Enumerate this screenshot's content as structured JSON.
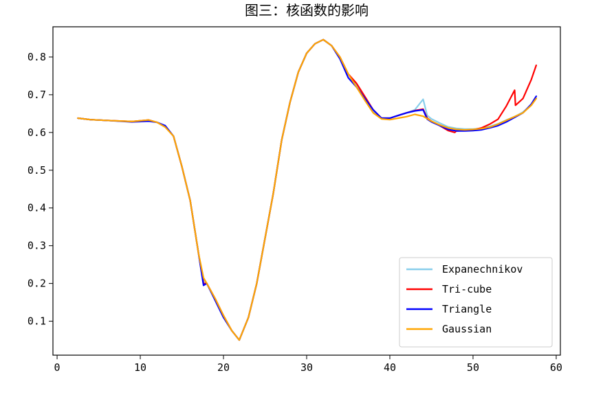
{
  "chart_data": {
    "type": "line",
    "title": "图三：核函数的影响",
    "xlabel": "",
    "ylabel": "",
    "xlim": [
      -0.5,
      60.5
    ],
    "ylim": [
      0.01,
      0.88
    ],
    "xticks": [
      0,
      10,
      20,
      30,
      40,
      50,
      60
    ],
    "yticks": [
      0.1,
      0.2,
      0.3,
      0.4,
      0.5,
      0.6,
      0.7,
      0.8
    ],
    "xtick_labels": [
      "0",
      "10",
      "20",
      "30",
      "40",
      "50",
      "60"
    ],
    "ytick_labels": [
      "0.1",
      "0.2",
      "0.3",
      "0.4",
      "0.5",
      "0.6",
      "0.7",
      "0.8"
    ],
    "grid": false,
    "legend_position": "lower-right",
    "series": [
      {
        "name": "Expanechnikov",
        "color": "#87ceeb",
        "x": [
          2.5,
          4,
          6,
          9,
          11,
          12,
          13,
          14,
          15,
          16,
          17,
          17.6,
          18,
          19,
          20,
          21,
          21.9,
          23,
          24,
          25,
          26,
          27,
          28,
          29,
          30,
          31,
          32,
          33,
          34,
          35,
          36,
          37,
          38,
          39,
          40,
          41,
          42,
          43,
          44,
          44.5,
          45,
          46,
          47,
          48,
          49,
          50,
          51,
          52,
          53,
          54,
          55,
          56,
          57,
          57.6
        ],
        "y": [
          0.638,
          0.634,
          0.632,
          0.629,
          0.633,
          0.627,
          0.616,
          0.59,
          0.51,
          0.42,
          0.28,
          0.21,
          0.2,
          0.16,
          0.115,
          0.075,
          0.05,
          0.11,
          0.2,
          0.32,
          0.44,
          0.58,
          0.68,
          0.76,
          0.81,
          0.835,
          0.846,
          0.83,
          0.8,
          0.755,
          0.725,
          0.69,
          0.655,
          0.638,
          0.638,
          0.645,
          0.652,
          0.66,
          0.688,
          0.645,
          0.636,
          0.625,
          0.615,
          0.611,
          0.609,
          0.609,
          0.611,
          0.616,
          0.623,
          0.633,
          0.642,
          0.654,
          0.672,
          0.691
        ]
      },
      {
        "name": "Tri-cube",
        "color": "#ff0000",
        "x": [
          2.5,
          4,
          6,
          9,
          11,
          12,
          13,
          14,
          15,
          16,
          17,
          17.6,
          18,
          19,
          20,
          21,
          21.9,
          23,
          24,
          25,
          26,
          27,
          28,
          29,
          30,
          31,
          32,
          33,
          34,
          35,
          36,
          37,
          38,
          39,
          40,
          41,
          42,
          43,
          44,
          44.5,
          45,
          46,
          47,
          47.8,
          48,
          49,
          50,
          51,
          52,
          53,
          54,
          55,
          55.1,
          56,
          57,
          57.6
        ],
        "y": [
          0.638,
          0.634,
          0.632,
          0.629,
          0.633,
          0.627,
          0.616,
          0.59,
          0.51,
          0.42,
          0.28,
          0.2,
          0.2,
          0.16,
          0.115,
          0.075,
          0.05,
          0.11,
          0.2,
          0.32,
          0.44,
          0.58,
          0.68,
          0.76,
          0.81,
          0.835,
          0.846,
          0.83,
          0.8,
          0.755,
          0.73,
          0.695,
          0.66,
          0.638,
          0.638,
          0.645,
          0.652,
          0.658,
          0.662,
          0.638,
          0.63,
          0.618,
          0.605,
          0.6,
          0.604,
          0.605,
          0.607,
          0.612,
          0.622,
          0.635,
          0.67,
          0.712,
          0.672,
          0.69,
          0.74,
          0.778
        ]
      },
      {
        "name": "Triangle",
        "color": "#0000ff",
        "x": [
          2.5,
          4,
          6,
          9,
          11,
          12,
          13,
          14,
          15,
          16,
          17,
          17.6,
          18,
          19,
          20,
          21,
          21.9,
          23,
          24,
          25,
          26,
          27,
          28,
          29,
          30,
          31,
          32,
          33,
          34,
          35,
          36,
          37,
          38,
          39,
          40,
          41,
          42,
          43,
          44,
          44.5,
          45,
          46,
          47,
          48,
          49,
          50,
          51,
          52,
          53,
          54,
          55,
          56,
          57,
          57.6
        ],
        "y": [
          0.638,
          0.634,
          0.632,
          0.628,
          0.63,
          0.627,
          0.618,
          0.59,
          0.51,
          0.42,
          0.28,
          0.195,
          0.2,
          0.155,
          0.11,
          0.075,
          0.05,
          0.11,
          0.2,
          0.32,
          0.44,
          0.58,
          0.68,
          0.76,
          0.81,
          0.835,
          0.846,
          0.83,
          0.795,
          0.745,
          0.72,
          0.69,
          0.66,
          0.638,
          0.638,
          0.645,
          0.652,
          0.657,
          0.66,
          0.635,
          0.628,
          0.618,
          0.608,
          0.604,
          0.604,
          0.605,
          0.607,
          0.612,
          0.618,
          0.628,
          0.64,
          0.652,
          0.675,
          0.696
        ]
      },
      {
        "name": "Gaussian",
        "color": "#ffa500",
        "x": [
          2.5,
          4,
          6,
          9,
          11,
          12,
          13,
          14,
          15,
          16,
          17,
          17.6,
          18,
          19,
          20,
          21,
          21.9,
          23,
          24,
          25,
          26,
          27,
          28,
          29,
          30,
          31,
          32,
          33,
          34,
          35,
          36,
          37,
          38,
          39,
          40,
          41,
          42,
          43,
          44,
          45,
          46,
          47,
          48,
          49,
          50,
          51,
          52,
          53,
          54,
          55,
          56,
          57,
          57.6
        ],
        "y": [
          0.638,
          0.634,
          0.632,
          0.629,
          0.633,
          0.627,
          0.614,
          0.59,
          0.51,
          0.42,
          0.28,
          0.215,
          0.2,
          0.16,
          0.115,
          0.075,
          0.05,
          0.11,
          0.2,
          0.32,
          0.44,
          0.58,
          0.68,
          0.76,
          0.81,
          0.835,
          0.846,
          0.83,
          0.8,
          0.755,
          0.72,
          0.685,
          0.652,
          0.636,
          0.634,
          0.638,
          0.642,
          0.648,
          0.643,
          0.63,
          0.62,
          0.612,
          0.608,
          0.607,
          0.608,
          0.61,
          0.614,
          0.622,
          0.632,
          0.642,
          0.652,
          0.672,
          0.69
        ]
      }
    ]
  }
}
